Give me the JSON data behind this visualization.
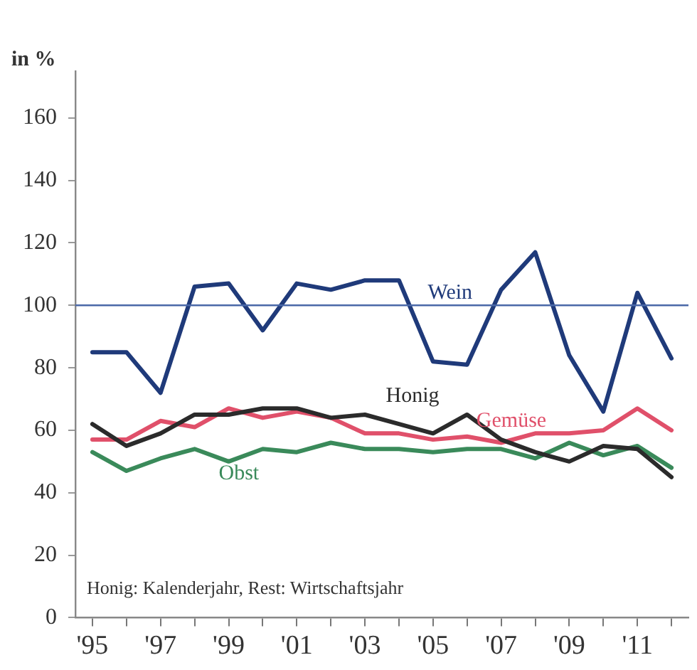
{
  "chart_data": {
    "type": "line",
    "ylabel": "in %",
    "categories": [
      "'95",
      null,
      "'97",
      null,
      "'99",
      null,
      "'01",
      null,
      "'03",
      null,
      "'05",
      null,
      "'07",
      null,
      "'09",
      null,
      "'11",
      null
    ],
    "series": [
      {
        "name": "Wein",
        "color": "#1f3a7a",
        "values": [
          85,
          85,
          72,
          106,
          107,
          92,
          107,
          105,
          108,
          108,
          82,
          81,
          105,
          117,
          84,
          66,
          104,
          83
        ]
      },
      {
        "name": "Honig",
        "color": "#2b2b2b",
        "values": [
          62,
          55,
          59,
          65,
          65,
          67,
          67,
          64,
          65,
          62,
          59,
          65,
          57,
          53,
          50,
          55,
          54,
          45
        ]
      },
      {
        "name": "Gemüse",
        "color": "#e0506a",
        "values": [
          57,
          57,
          63,
          61,
          67,
          64,
          66,
          64,
          59,
          59,
          57,
          58,
          56,
          59,
          59,
          60,
          67,
          60
        ]
      },
      {
        "name": "Obst",
        "color": "#3a8a5a",
        "values": [
          53,
          47,
          51,
          54,
          50,
          54,
          53,
          56,
          54,
          54,
          53,
          54,
          54,
          51,
          56,
          52,
          55,
          48
        ]
      }
    ],
    "ylim": [
      0,
      175
    ],
    "yticks": [
      0,
      20,
      40,
      60,
      80,
      100,
      120,
      140,
      160
    ],
    "ref_lines": [
      {
        "axis": "y",
        "value": 100,
        "color": "#4a68a8"
      }
    ],
    "annotations": [
      "Honig: Kalenderjahr, Rest: Wirtschaftsjahr"
    ],
    "grid": false,
    "legend": false,
    "marker": "none",
    "line_style": "solid"
  }
}
